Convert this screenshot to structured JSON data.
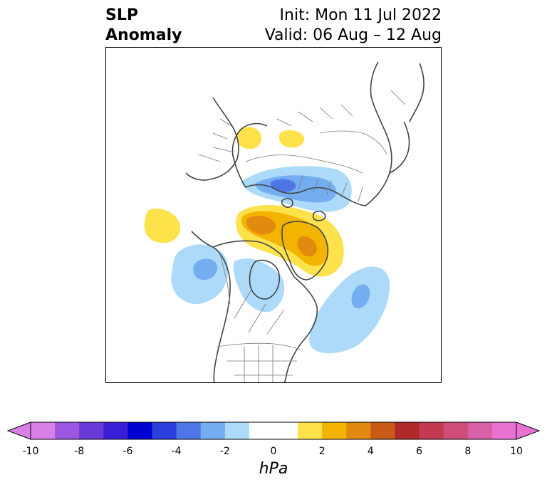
{
  "title": {
    "left_line1": "SLP",
    "left_line2": "Anomaly",
    "right_line1": "Init: Mon 11 Jul 2022",
    "right_line2": "Valid: 06 Aug – 12 Aug"
  },
  "colorbar": {
    "unit": "hPa",
    "min": -10,
    "max": 10,
    "extend": "both",
    "ticks": [
      "-10",
      "-8",
      "-6",
      "-4",
      "-2",
      "0",
      "2",
      "4",
      "6",
      "8",
      "10"
    ],
    "colors": [
      "#d980e8",
      "#9b57e0",
      "#6a3ad8",
      "#3a1fd6",
      "#0000d0",
      "#2a3fdb",
      "#4f76e6",
      "#74aef0",
      "#acdaf8",
      "#ffffff",
      "#ffffff",
      "#fde24c",
      "#f3b400",
      "#e28a10",
      "#c95a18",
      "#b02828",
      "#c23a50",
      "#cf4e78",
      "#d860a8",
      "#e872d2"
    ]
  },
  "map": {
    "projection": "north-polar stereographic",
    "field": "sea level pressure anomaly",
    "features": [
      {
        "name": "positive anomaly over Arctic Ocean / Greenland",
        "sign": "positive",
        "peak_hpa": 4
      },
      {
        "name": "negative anomaly over northern Siberia / Kara Sea",
        "sign": "negative",
        "peak_hpa": -4
      },
      {
        "name": "negative anomaly over Gulf of Alaska",
        "sign": "negative",
        "peak_hpa": -2
      },
      {
        "name": "negative anomaly over North Atlantic",
        "sign": "negative",
        "peak_hpa": -2
      },
      {
        "name": "negative anomaly over Hudson Bay region",
        "sign": "negative",
        "peak_hpa": -1
      },
      {
        "name": "positive anomalies over eastern Europe",
        "sign": "positive",
        "peak_hpa": 1
      },
      {
        "name": "positive anomaly over North Pacific",
        "sign": "positive",
        "peak_hpa": 1
      }
    ]
  }
}
